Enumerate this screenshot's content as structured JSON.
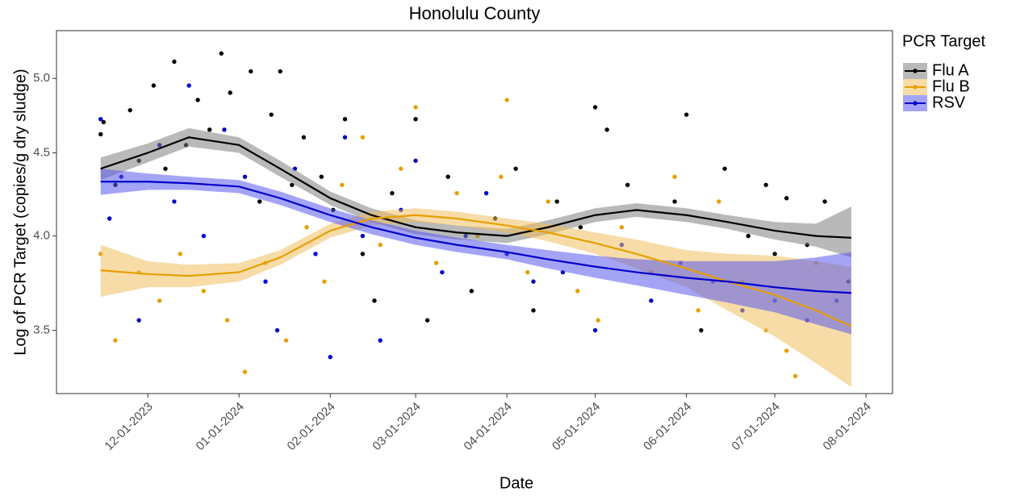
{
  "chart_data": {
    "type": "scatter-smooth",
    "title": "Honolulu County",
    "x_label": "Date",
    "y_label": "Log of PCR Target (copies/g dry sludge)",
    "legend_title": "PCR Target",
    "legend_position": "right",
    "grid": false,
    "y_log": true,
    "xlim": [
      "2023-10-31",
      "2024-08-10"
    ],
    "ylim": [
      3.2,
      5.35
    ],
    "yticks": [
      {
        "value": 3.5,
        "label": "3.5"
      },
      {
        "value": 4,
        "label": "4.0"
      },
      {
        "value": 4.5,
        "label": "4.5"
      },
      {
        "value": 5,
        "label": "5.0"
      }
    ],
    "xticks": [
      {
        "value": "2023-12-01",
        "label": "12-01-2023"
      },
      {
        "value": "2024-01-01",
        "label": "01-01-2024"
      },
      {
        "value": "2024-02-01",
        "label": "02-01-2024"
      },
      {
        "value": "2024-03-01",
        "label": "03-01-2024"
      },
      {
        "value": "2024-04-01",
        "label": "04-01-2024"
      },
      {
        "value": "2024-05-01",
        "label": "05-01-2024"
      },
      {
        "value": "2024-06-01",
        "label": "06-01-2024"
      },
      {
        "value": "2024-07-01",
        "label": "07-01-2024"
      },
      {
        "value": "2024-08-01",
        "label": "08-01-2024"
      }
    ],
    "series": [
      {
        "name": "Flu A",
        "color": "#000000",
        "band_color": "#7f7f7f",
        "x": [
          "2023-11-15",
          "2023-11-16",
          "2023-11-20",
          "2023-11-25",
          "2023-11-28",
          "2023-12-03",
          "2023-12-07",
          "2023-12-10",
          "2023-12-14",
          "2023-12-18",
          "2023-12-22",
          "2023-12-26",
          "2023-12-29",
          "2024-01-05",
          "2024-01-08",
          "2024-01-12",
          "2024-01-15",
          "2024-01-19",
          "2024-01-23",
          "2024-01-29",
          "2024-02-02",
          "2024-02-06",
          "2024-02-12",
          "2024-02-16",
          "2024-02-22",
          "2024-03-01",
          "2024-03-05",
          "2024-03-12",
          "2024-03-20",
          "2024-03-28",
          "2024-04-04",
          "2024-04-10",
          "2024-04-18",
          "2024-04-26",
          "2024-05-01",
          "2024-05-05",
          "2024-05-12",
          "2024-05-20",
          "2024-05-28",
          "2024-06-01",
          "2024-06-06",
          "2024-06-14",
          "2024-06-22",
          "2024-06-28",
          "2024-07-01",
          "2024-07-05",
          "2024-07-12",
          "2024-07-18",
          "2024-07-26"
        ],
        "values": [
          4.62,
          4.7,
          4.3,
          4.78,
          4.45,
          4.95,
          4.4,
          5.12,
          4.55,
          4.85,
          4.65,
          5.18,
          4.9,
          5.05,
          4.2,
          4.75,
          5.05,
          4.3,
          4.6,
          4.35,
          4.15,
          4.72,
          3.9,
          3.65,
          4.25,
          4.72,
          3.55,
          4.35,
          3.7,
          4.1,
          4.4,
          3.6,
          4.2,
          4.05,
          4.8,
          4.65,
          4.3,
          3.8,
          4.2,
          4.75,
          3.5,
          4.4,
          4.0,
          4.3,
          3.9,
          4.22,
          3.95,
          4.2,
          3.75
        ],
        "smooth": {
          "x": [
            "2023-11-15",
            "2023-12-01",
            "2023-12-15",
            "2024-01-01",
            "2024-01-15",
            "2024-02-01",
            "2024-02-15",
            "2024-03-01",
            "2024-03-15",
            "2024-04-01",
            "2024-04-15",
            "2024-05-01",
            "2024-05-15",
            "2024-06-01",
            "2024-06-15",
            "2024-07-01",
            "2024-07-15",
            "2024-07-27"
          ],
          "values": [
            4.4,
            4.5,
            4.6,
            4.55,
            4.4,
            4.22,
            4.12,
            4.05,
            4.02,
            4.0,
            4.05,
            4.12,
            4.15,
            4.12,
            4.08,
            4.03,
            4.0,
            3.99
          ],
          "lower": [
            4.33,
            4.44,
            4.54,
            4.5,
            4.35,
            4.18,
            4.08,
            4.01,
            3.98,
            3.96,
            4.01,
            4.08,
            4.11,
            4.08,
            4.04,
            3.98,
            3.94,
            3.88
          ],
          "upper": [
            4.47,
            4.56,
            4.66,
            4.6,
            4.45,
            4.26,
            4.16,
            4.09,
            4.06,
            4.04,
            4.09,
            4.16,
            4.19,
            4.16,
            4.12,
            4.08,
            4.07,
            4.17
          ]
        }
      },
      {
        "name": "Flu B",
        "color": "#E69F00",
        "band_color": "#f0c060",
        "x": [
          "2023-11-15",
          "2023-11-20",
          "2023-11-28",
          "2023-12-05",
          "2023-12-12",
          "2023-12-20",
          "2023-12-28",
          "2024-01-03",
          "2024-01-10",
          "2024-01-17",
          "2024-01-24",
          "2024-01-30",
          "2024-02-05",
          "2024-02-12",
          "2024-02-18",
          "2024-02-25",
          "2024-03-01",
          "2024-03-08",
          "2024-03-15",
          "2024-03-22",
          "2024-03-30",
          "2024-04-01",
          "2024-04-08",
          "2024-04-15",
          "2024-04-25",
          "2024-05-02",
          "2024-05-10",
          "2024-05-20",
          "2024-05-28",
          "2024-06-05",
          "2024-06-12",
          "2024-06-20",
          "2024-06-28",
          "2024-07-05",
          "2024-07-08",
          "2024-07-15"
        ],
        "values": [
          3.9,
          3.45,
          3.8,
          3.65,
          3.9,
          3.7,
          3.55,
          3.3,
          3.85,
          3.45,
          4.05,
          3.75,
          4.3,
          4.6,
          3.95,
          4.4,
          4.8,
          3.85,
          4.25,
          4.0,
          4.35,
          4.85,
          3.8,
          4.2,
          3.7,
          3.55,
          4.05,
          3.8,
          4.35,
          3.6,
          4.2,
          3.75,
          3.5,
          3.4,
          3.28,
          3.85
        ],
        "smooth": {
          "x": [
            "2023-11-15",
            "2023-12-01",
            "2023-12-15",
            "2024-01-01",
            "2024-01-15",
            "2024-02-01",
            "2024-02-15",
            "2024-03-01",
            "2024-03-15",
            "2024-04-01",
            "2024-04-15",
            "2024-05-01",
            "2024-05-15",
            "2024-06-01",
            "2024-06-15",
            "2024-07-01",
            "2024-07-15",
            "2024-07-27"
          ],
          "values": [
            3.81,
            3.79,
            3.78,
            3.8,
            3.88,
            4.03,
            4.1,
            4.12,
            4.1,
            4.06,
            4.02,
            3.96,
            3.9,
            3.82,
            3.75,
            3.68,
            3.6,
            3.52
          ],
          "lower": [
            3.67,
            3.72,
            3.72,
            3.75,
            3.84,
            3.99,
            4.06,
            4.08,
            4.06,
            4.02,
            3.97,
            3.9,
            3.82,
            3.72,
            3.6,
            3.47,
            3.34,
            3.23
          ],
          "upper": [
            3.95,
            3.86,
            3.84,
            3.85,
            3.92,
            4.07,
            4.14,
            4.16,
            4.14,
            4.1,
            4.07,
            4.02,
            3.98,
            3.92,
            3.9,
            3.89,
            3.86,
            3.83
          ]
        }
      },
      {
        "name": "RSV",
        "color": "#0000CC",
        "band_color": "#5a5aef",
        "x": [
          "2023-11-15",
          "2023-11-18",
          "2023-11-22",
          "2023-11-28",
          "2023-12-05",
          "2023-12-10",
          "2023-12-15",
          "2023-12-20",
          "2023-12-27",
          "2024-01-03",
          "2024-01-10",
          "2024-01-14",
          "2024-01-20",
          "2024-01-27",
          "2024-02-01",
          "2024-02-06",
          "2024-02-12",
          "2024-02-18",
          "2024-02-25",
          "2024-03-01",
          "2024-03-10",
          "2024-03-18",
          "2024-03-25",
          "2024-04-01",
          "2024-04-10",
          "2024-04-20",
          "2024-05-01",
          "2024-05-10",
          "2024-05-20",
          "2024-05-30",
          "2024-06-10",
          "2024-06-20",
          "2024-07-01",
          "2024-07-12",
          "2024-07-22"
        ],
        "values": [
          4.72,
          4.1,
          4.35,
          3.55,
          4.55,
          4.2,
          4.95,
          4.0,
          4.65,
          4.35,
          3.75,
          3.5,
          4.4,
          3.9,
          3.37,
          4.6,
          4.0,
          3.45,
          4.15,
          4.45,
          3.8,
          4.0,
          4.25,
          3.9,
          3.75,
          3.8,
          3.5,
          3.95,
          3.65,
          3.85,
          3.75,
          3.6,
          3.65,
          3.55,
          3.65
        ],
        "smooth": {
          "x": [
            "2023-11-15",
            "2023-12-01",
            "2023-12-15",
            "2024-01-01",
            "2024-01-15",
            "2024-02-01",
            "2024-02-15",
            "2024-03-01",
            "2024-03-15",
            "2024-04-01",
            "2024-04-15",
            "2024-05-01",
            "2024-05-15",
            "2024-06-01",
            "2024-06-15",
            "2024-07-01",
            "2024-07-15",
            "2024-07-27"
          ],
          "values": [
            4.32,
            4.32,
            4.31,
            4.29,
            4.22,
            4.12,
            4.05,
            3.99,
            3.95,
            3.91,
            3.87,
            3.83,
            3.8,
            3.77,
            3.75,
            3.72,
            3.7,
            3.69
          ],
          "lower": [
            4.24,
            4.27,
            4.27,
            4.25,
            4.18,
            4.08,
            4.01,
            3.95,
            3.91,
            3.87,
            3.82,
            3.77,
            3.73,
            3.68,
            3.64,
            3.59,
            3.53,
            3.48
          ],
          "upper": [
            4.4,
            4.37,
            4.35,
            4.33,
            4.26,
            4.16,
            4.09,
            4.03,
            3.99,
            3.95,
            3.92,
            3.89,
            3.87,
            3.86,
            3.86,
            3.86,
            3.88,
            3.91
          ]
        }
      }
    ]
  }
}
